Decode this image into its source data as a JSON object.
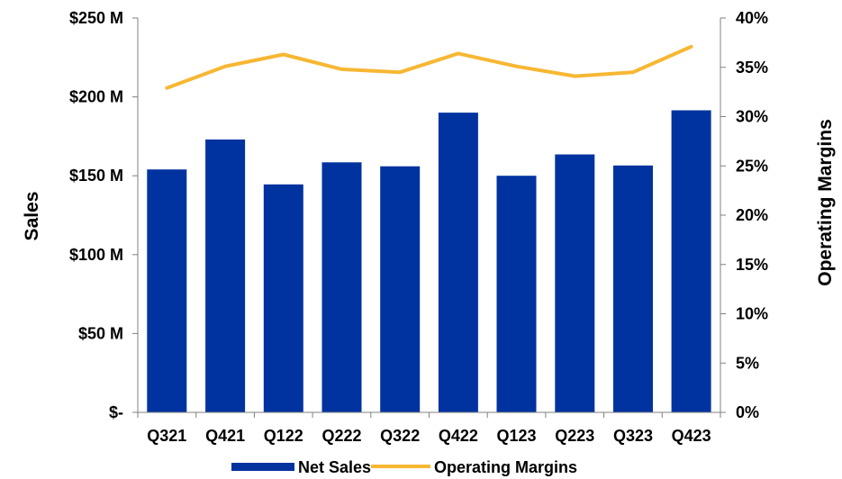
{
  "chart_data": {
    "type": "bar",
    "categories": [
      "Q321",
      "Q421",
      "Q122",
      "Q222",
      "Q322",
      "Q422",
      "Q123",
      "Q223",
      "Q323",
      "Q423"
    ],
    "series": [
      {
        "name": "Net Sales",
        "type": "bar",
        "axis": "left",
        "color": "#0033A0",
        "values": [
          154,
          173,
          144.5,
          158.5,
          156,
          190,
          150,
          163.5,
          156.5,
          191.5
        ]
      },
      {
        "name": "Operating Margins",
        "type": "line",
        "axis": "right",
        "color": "#F7B733",
        "values": [
          32.9,
          35.1,
          36.3,
          34.8,
          34.5,
          36.4,
          35.1,
          34.1,
          34.5,
          37.1
        ]
      }
    ],
    "ylabel": "Sales",
    "y2label": "Operating Margins",
    "ylim": [
      0,
      250
    ],
    "y2lim": [
      0,
      40
    ],
    "yticks": [
      {
        "value": 0,
        "label": "$-"
      },
      {
        "value": 50,
        "label": "$50 M"
      },
      {
        "value": 100,
        "label": "$100 M"
      },
      {
        "value": 150,
        "label": "$150 M"
      },
      {
        "value": 200,
        "label": "$200 M"
      },
      {
        "value": 250,
        "label": "$250 M"
      }
    ],
    "y2ticks": [
      {
        "value": 0,
        "label": "0%"
      },
      {
        "value": 5,
        "label": "5%"
      },
      {
        "value": 10,
        "label": "10%"
      },
      {
        "value": 15,
        "label": "15%"
      },
      {
        "value": 20,
        "label": "20%"
      },
      {
        "value": 25,
        "label": "25%"
      },
      {
        "value": 30,
        "label": "30%"
      },
      {
        "value": 35,
        "label": "35%"
      },
      {
        "value": 40,
        "label": "40%"
      }
    ],
    "legend": {
      "position": "bottom",
      "entries": [
        "Net Sales",
        "Operating Margins"
      ]
    },
    "grid": false
  }
}
